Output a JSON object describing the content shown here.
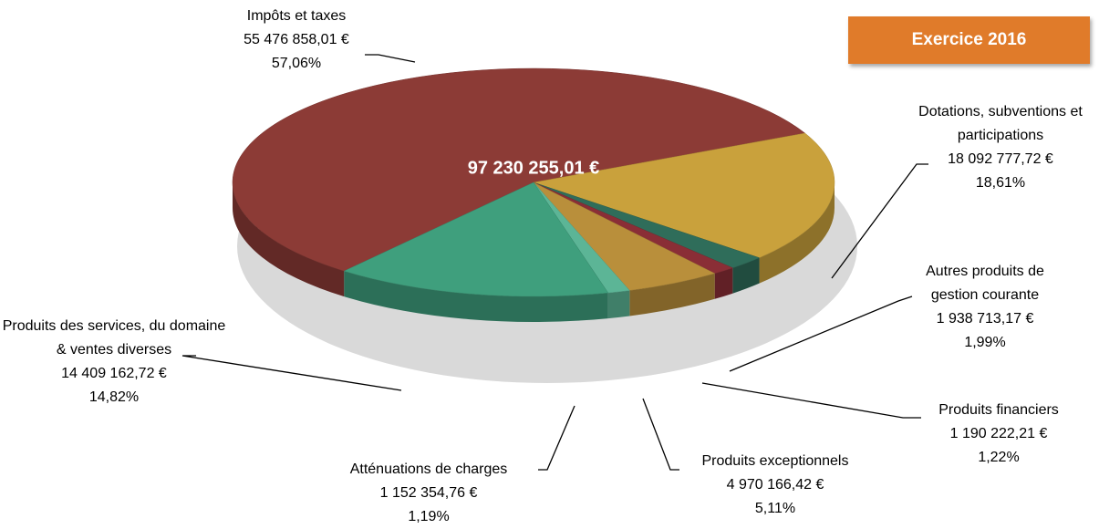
{
  "chart_data": {
    "type": "pie",
    "badge": "Exercice 2016",
    "total": 97230255.01,
    "total_label": "97 230 255,01 €",
    "categories": [
      "Impôts et taxes",
      "Dotations, subventions et participations",
      "Autres produits de gestion courante",
      "Produits financiers",
      "Produits exceptionnels",
      "Atténuations de charges",
      "Produits des services, du domaine & ventes diverses"
    ],
    "values": [
      55476858.01,
      18092777.72,
      1938713.17,
      1190222.21,
      4970166.42,
      1152354.76,
      14409162.72
    ],
    "value_labels": [
      "55 476 858,01 €",
      "18 092 777,72 €",
      "1 938 713,17 €",
      "1 190 222,21 €",
      "4 970 166,42 €",
      "1 152 354,76 €",
      "14 409 162,72 €"
    ],
    "percents": [
      57.06,
      18.61,
      1.99,
      1.22,
      5.11,
      1.19,
      14.82
    ],
    "percent_labels": [
      "57,06%",
      "18,61%",
      "1,99%",
      "1,22%",
      "5,11%",
      "1,19%",
      "14,82%"
    ],
    "colors": [
      "#8c3b36",
      "#c9a13c",
      "#2f6d5a",
      "#8a2e36",
      "#b98f3b",
      "#5cb596",
      "#3f9f7d"
    ]
  }
}
